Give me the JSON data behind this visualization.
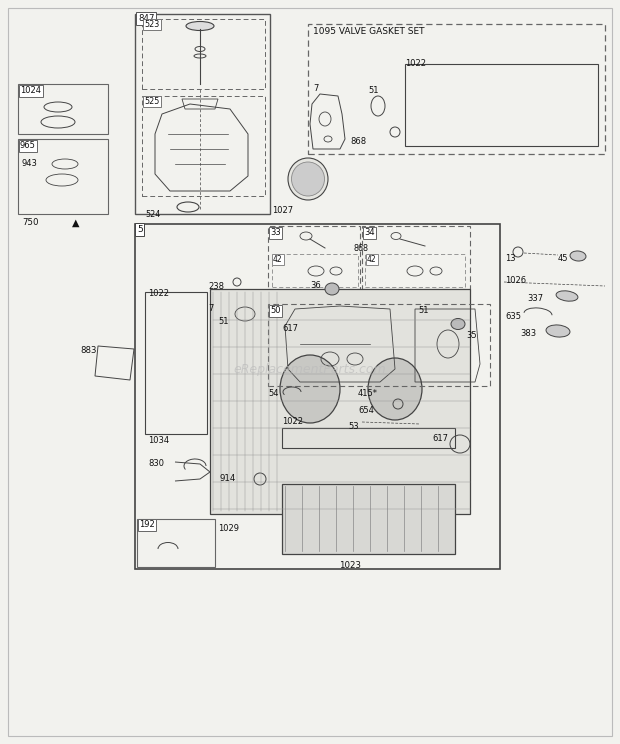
{
  "bg_color": "#f2f2ee",
  "line_color": "#444444",
  "text_color": "#111111",
  "watermark": "eReplacementParts.com",
  "figsize": [
    6.2,
    7.44
  ],
  "dpi": 100
}
